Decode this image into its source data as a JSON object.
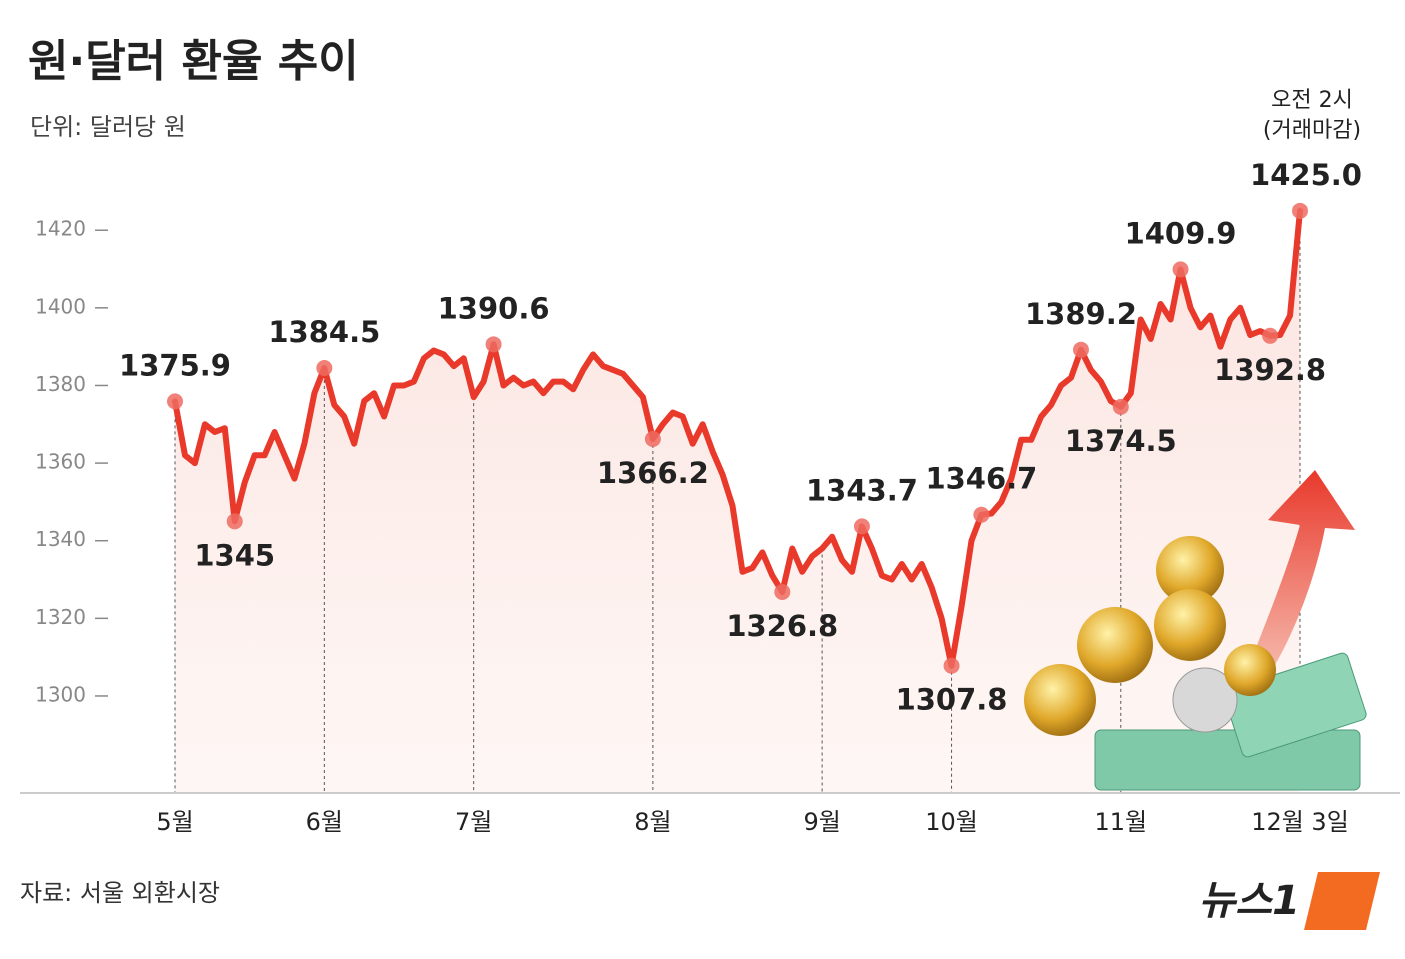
{
  "chart_data": {
    "type": "line",
    "title": "원·달러 환율 추이",
    "subtitle": "단위: 달러당 원",
    "source": "자료: 서울 외환시장",
    "logo": "뉴스1",
    "annotations": [
      "오전 2시",
      "(거래마감)"
    ],
    "color": "#e8392b",
    "ylim": [
      1275,
      1435
    ],
    "yticks": [
      1300,
      1320,
      1340,
      1360,
      1380,
      1400,
      1420
    ],
    "categories": [
      "5월",
      null,
      null,
      null,
      null,
      null,
      null,
      null,
      null,
      null,
      null,
      null,
      null,
      null,
      null,
      "6월",
      null,
      null,
      null,
      null,
      null,
      null,
      null,
      null,
      null,
      null,
      null,
      null,
      null,
      null,
      "7월",
      null,
      null,
      null,
      null,
      null,
      null,
      null,
      null,
      null,
      null,
      null,
      null,
      null,
      null,
      null,
      null,
      null,
      "8월",
      null,
      null,
      null,
      null,
      null,
      null,
      null,
      null,
      null,
      null,
      null,
      null,
      null,
      null,
      null,
      null,
      "9월",
      null,
      null,
      null,
      null,
      null,
      null,
      null,
      null,
      null,
      null,
      null,
      null,
      "10월",
      null,
      null,
      null,
      null,
      null,
      null,
      null,
      null,
      null,
      null,
      null,
      null,
      null,
      null,
      null,
      null,
      "11월",
      null,
      null,
      null,
      null,
      null,
      null,
      null,
      null,
      null,
      null,
      null,
      null,
      null,
      null,
      null,
      null,
      null,
      "12월 3일"
    ],
    "values": [
      1375.9,
      1362,
      1360,
      1370,
      1368,
      1369,
      1345,
      1355,
      1362,
      1362,
      1368,
      1362,
      1356,
      1365,
      1378,
      1384.5,
      1375,
      1372,
      1365,
      1376,
      1378,
      1372,
      1380,
      1380,
      1381,
      1387,
      1389,
      1388,
      1385,
      1387,
      1377,
      1381,
      1390.6,
      1380,
      1382,
      1380,
      1381,
      1378,
      1381,
      1381,
      1379,
      1384,
      1388,
      1385,
      1384,
      1383,
      1380,
      1377,
      1366.2,
      1370,
      1373,
      1372,
      1365,
      1370,
      1363,
      1357,
      1349,
      1332,
      1333,
      1337,
      1331,
      1326.8,
      1338,
      1332,
      1336,
      1338,
      1341,
      1335,
      1332,
      1343.7,
      1338,
      1331,
      1330,
      1334,
      1330,
      1334,
      1328,
      1320,
      1307.8,
      1323,
      1340,
      1346.7,
      1347,
      1350,
      1356,
      1366,
      1366,
      1372,
      1375,
      1380,
      1382,
      1389.2,
      1384,
      1381,
      1376,
      1374.5,
      1378,
      1397,
      1392,
      1401,
      1397,
      1409.9,
      1400,
      1395,
      1398,
      1390,
      1397,
      1400,
      1393,
      1394,
      1392.8,
      1393,
      1398,
      1425.0
    ],
    "value_labels": [
      "1375.9",
      null,
      null,
      null,
      null,
      null,
      "1345",
      null,
      null,
      null,
      null,
      null,
      null,
      null,
      null,
      "1384.5",
      null,
      null,
      null,
      null,
      null,
      null,
      null,
      null,
      null,
      null,
      null,
      null,
      null,
      null,
      null,
      null,
      "1390.6",
      null,
      null,
      null,
      null,
      null,
      null,
      null,
      null,
      null,
      null,
      null,
      null,
      null,
      null,
      null,
      "1366.2",
      null,
      null,
      null,
      null,
      null,
      null,
      null,
      null,
      null,
      null,
      null,
      null,
      "1326.8",
      null,
      null,
      null,
      null,
      null,
      null,
      null,
      "1343.7",
      null,
      null,
      null,
      null,
      null,
      null,
      null,
      null,
      "1307.8",
      null,
      null,
      "1346.7",
      null,
      null,
      null,
      null,
      null,
      null,
      null,
      null,
      null,
      "1389.2",
      null,
      null,
      null,
      "1374.5",
      null,
      null,
      null,
      null,
      null,
      "1409.9",
      null,
      null,
      null,
      null,
      null,
      null,
      null,
      null,
      "1392.8",
      null,
      null,
      "1425.0"
    ]
  }
}
